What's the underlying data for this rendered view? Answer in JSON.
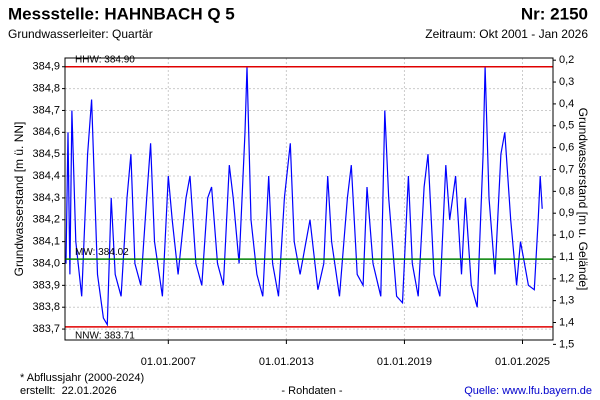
{
  "chart_data": {
    "type": "line",
    "title": "Messstelle: HAHNBACH Q 5",
    "number": "Nr: 2150",
    "subtitle": "Grundwasserleiter: Quartär",
    "period": "Zeitraum: Okt 2001 - Jan 2026",
    "y_label": "Grundwasserstand [m ü. NN]",
    "y2_label": "Grundwasserstand [m u. Gelände]",
    "footnote": "* Abflussjahr (2000-2024)",
    "created": "erstellt:  22.01.2026",
    "data_note": "- Rohdaten -",
    "source": "Quelle: www.lfu.bayern.de",
    "grid": true,
    "xlim": [
      2001.75,
      2026.55
    ],
    "ylim": [
      383.65,
      384.94
    ],
    "y2lim": [
      1.48,
      0.19
    ],
    "xticks": [
      {
        "value": 2007,
        "label": "01.01.2007"
      },
      {
        "value": 2013,
        "label": "01.01.2013"
      },
      {
        "value": 2019,
        "label": "01.01.2019"
      },
      {
        "value": 2025,
        "label": "01.01.2025"
      }
    ],
    "yticks": [
      {
        "value": 383.7,
        "label": "383,7"
      },
      {
        "value": 383.8,
        "label": "383,8"
      },
      {
        "value": 383.9,
        "label": "383,9"
      },
      {
        "value": 384.0,
        "label": "384,0"
      },
      {
        "value": 384.1,
        "label": "384,1"
      },
      {
        "value": 384.2,
        "label": "384,2"
      },
      {
        "value": 384.3,
        "label": "384,3"
      },
      {
        "value": 384.4,
        "label": "384,4"
      },
      {
        "value": 384.5,
        "label": "384,5"
      },
      {
        "value": 384.6,
        "label": "384,6"
      },
      {
        "value": 384.7,
        "label": "384,7"
      },
      {
        "value": 384.8,
        "label": "384,8"
      },
      {
        "value": 384.9,
        "label": "384,9"
      }
    ],
    "y2ticks": [
      {
        "value": 0.2,
        "label": "0,2"
      },
      {
        "value": 0.3,
        "label": "0,3"
      },
      {
        "value": 0.4,
        "label": "0,4"
      },
      {
        "value": 0.5,
        "label": "0,5"
      },
      {
        "value": 0.6,
        "label": "0,6"
      },
      {
        "value": 0.7,
        "label": "0,7"
      },
      {
        "value": 0.8,
        "label": "0,8"
      },
      {
        "value": 0.9,
        "label": "0,9"
      },
      {
        "value": 1.0,
        "label": "1,0"
      },
      {
        "value": 1.1,
        "label": "1,1"
      },
      {
        "value": 1.2,
        "label": "1,2"
      },
      {
        "value": 1.3,
        "label": "1,3"
      },
      {
        "value": 1.4,
        "label": "1,4"
      },
      {
        "value": 1.5,
        "label": "1,5"
      }
    ],
    "reference_lines": [
      {
        "label": "HHW: 384.90",
        "value": 384.9,
        "color": "#e00000"
      },
      {
        "label": "MW: 384.02",
        "value": 384.02,
        "color": "#008000"
      },
      {
        "label": "NNW: 383.71",
        "value": 383.71,
        "color": "#e00000"
      }
    ],
    "x": [
      2001.8,
      2001.9,
      2002.0,
      2002.1,
      2002.3,
      2002.6,
      2002.9,
      2003.1,
      2003.4,
      2003.7,
      2003.9,
      2004.1,
      2004.3,
      2004.6,
      2004.9,
      2005.1,
      2005.3,
      2005.6,
      2005.9,
      2006.1,
      2006.3,
      2006.7,
      2007.0,
      2007.2,
      2007.5,
      2007.9,
      2008.1,
      2008.4,
      2008.7,
      2009.0,
      2009.2,
      2009.5,
      2009.8,
      2010.1,
      2010.3,
      2010.6,
      2010.9,
      2011.0,
      2011.2,
      2011.5,
      2011.8,
      2012.1,
      2012.3,
      2012.6,
      2012.9,
      2013.2,
      2013.4,
      2013.7,
      2014.0,
      2014.2,
      2014.6,
      2014.9,
      2015.1,
      2015.3,
      2015.7,
      2016.1,
      2016.3,
      2016.6,
      2016.9,
      2017.1,
      2017.4,
      2017.8,
      2018.0,
      2018.2,
      2018.6,
      2018.9,
      2019.2,
      2019.4,
      2019.7,
      2020.0,
      2020.2,
      2020.5,
      2020.8,
      2021.1,
      2021.3,
      2021.6,
      2021.9,
      2022.1,
      2022.4,
      2022.7,
      2023.0,
      2023.1,
      2023.3,
      2023.6,
      2023.9,
      2024.1,
      2024.4,
      2024.7,
      2024.9,
      2025.1,
      2025.3,
      2025.6,
      2025.8,
      2025.9,
      2026.0
    ],
    "series": [
      {
        "name": "Grundwasserstand",
        "color": "#0000ff",
        "values": [
          384.0,
          384.6,
          383.95,
          384.7,
          384.1,
          383.85,
          384.5,
          384.75,
          383.95,
          383.75,
          383.72,
          384.3,
          383.95,
          383.85,
          384.3,
          384.5,
          384.0,
          383.9,
          384.3,
          384.55,
          384.1,
          383.85,
          384.4,
          384.2,
          383.95,
          384.3,
          384.4,
          384.0,
          383.9,
          384.3,
          384.35,
          384.0,
          383.9,
          384.45,
          384.3,
          384.0,
          384.6,
          384.9,
          384.2,
          383.95,
          383.85,
          384.4,
          384.0,
          383.85,
          384.3,
          384.55,
          384.1,
          383.95,
          384.1,
          384.2,
          383.88,
          384.0,
          384.4,
          384.1,
          383.85,
          384.3,
          384.45,
          383.95,
          383.9,
          384.35,
          384.0,
          383.85,
          384.7,
          384.3,
          383.85,
          383.82,
          384.4,
          384.0,
          383.85,
          384.35,
          384.5,
          383.95,
          383.85,
          384.45,
          384.2,
          384.4,
          383.95,
          384.3,
          383.9,
          383.8,
          384.5,
          384.9,
          384.3,
          383.95,
          384.5,
          384.6,
          384.2,
          383.9,
          384.1,
          384.0,
          383.9,
          383.88,
          384.2,
          384.4,
          384.25
        ]
      }
    ]
  }
}
